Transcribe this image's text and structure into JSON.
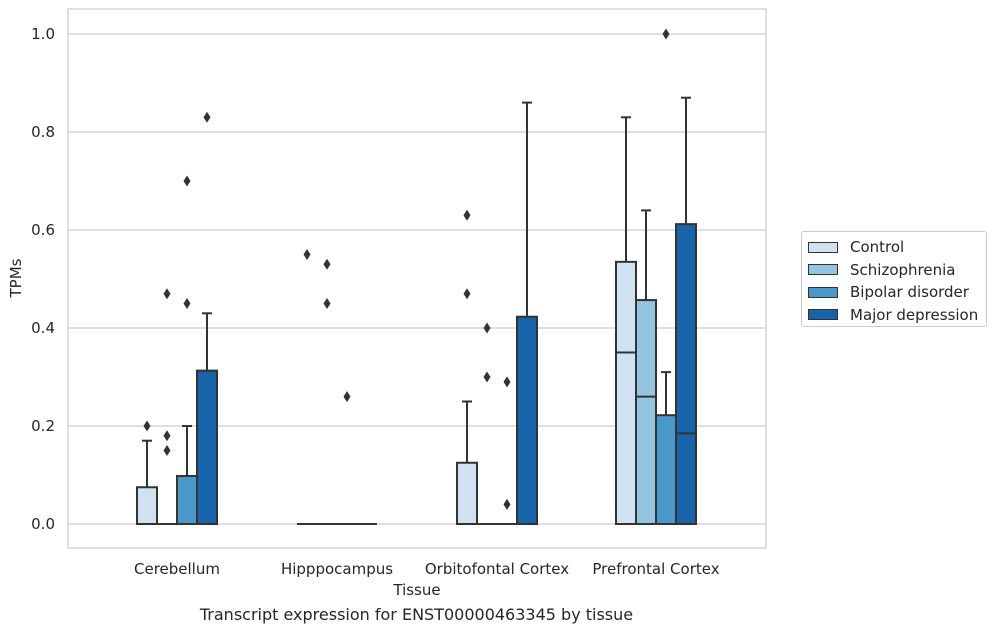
{
  "chart_data": {
    "type": "box",
    "title": "",
    "xlabel": "Tissue",
    "ylabel": "TPMs",
    "ylim": [
      -0.05,
      1.05
    ],
    "yticks": [
      "0.0",
      "0.2",
      "0.4",
      "0.6",
      "0.8",
      "1.0"
    ],
    "categories": [
      "Cerebellum",
      "Hipppocampus",
      "Orbitofontal Cortex",
      "Prefrontal Cortex"
    ],
    "grid": "horizontal",
    "legend_position": "right",
    "series": [
      {
        "name": "Control",
        "color": "#d0e1f2",
        "boxes": [
          {
            "q1": 0.0,
            "median": 0.0,
            "q3": 0.075,
            "whisker_low": 0.0,
            "whisker_high": 0.17,
            "outliers": [
              0.2
            ]
          },
          {
            "q1": 0.0,
            "median": 0.0,
            "q3": 0.0,
            "whisker_low": 0.0,
            "whisker_high": 0.0,
            "outliers": [
              0.55
            ]
          },
          {
            "q1": 0.0,
            "median": 0.0,
            "q3": 0.125,
            "whisker_low": 0.0,
            "whisker_high": 0.25,
            "outliers": [
              0.47,
              0.63
            ]
          },
          {
            "q1": 0.0,
            "median": 0.35,
            "q3": 0.535,
            "whisker_low": 0.0,
            "whisker_high": 0.83,
            "outliers": []
          }
        ]
      },
      {
        "name": "Schizophrenia",
        "color": "#94c4df",
        "boxes": [
          {
            "q1": 0.0,
            "median": 0.0,
            "q3": 0.0,
            "whisker_low": 0.0,
            "whisker_high": 0.0,
            "outliers": [
              0.15,
              0.18,
              0.47
            ]
          },
          {
            "q1": 0.0,
            "median": 0.0,
            "q3": 0.0,
            "whisker_low": 0.0,
            "whisker_high": 0.0,
            "outliers": [
              0.45,
              0.53
            ]
          },
          {
            "q1": 0.0,
            "median": 0.0,
            "q3": 0.0,
            "whisker_low": 0.0,
            "whisker_high": 0.0,
            "outliers": [
              0.3,
              0.4
            ]
          },
          {
            "q1": 0.0,
            "median": 0.26,
            "q3": 0.457,
            "whisker_low": 0.0,
            "whisker_high": 0.64,
            "outliers": []
          }
        ]
      },
      {
        "name": "Bipolar disorder",
        "color": "#4a98c9",
        "boxes": [
          {
            "q1": 0.0,
            "median": 0.0,
            "q3": 0.098,
            "whisker_low": 0.0,
            "whisker_high": 0.2,
            "outliers": [
              0.45,
              0.7
            ]
          },
          {
            "q1": 0.0,
            "median": 0.0,
            "q3": 0.0,
            "whisker_low": 0.0,
            "whisker_high": 0.0,
            "outliers": [
              0.26
            ]
          },
          {
            "q1": 0.0,
            "median": 0.0,
            "q3": 0.0,
            "whisker_low": 0.0,
            "whisker_high": 0.0,
            "outliers": [
              0.04,
              0.29
            ]
          },
          {
            "q1": 0.0,
            "median": 0.0,
            "q3": 0.222,
            "whisker_low": 0.0,
            "whisker_high": 0.31,
            "outliers": [
              1.0
            ]
          }
        ]
      },
      {
        "name": "Major depression",
        "color": "#1764ab",
        "boxes": [
          {
            "q1": 0.0,
            "median": 0.0,
            "q3": 0.313,
            "whisker_low": 0.0,
            "whisker_high": 0.43,
            "outliers": [
              0.83
            ]
          },
          {
            "q1": 0.0,
            "median": 0.0,
            "q3": 0.0,
            "whisker_low": 0.0,
            "whisker_high": 0.0,
            "outliers": []
          },
          {
            "q1": 0.0,
            "median": 0.0,
            "q3": 0.423,
            "whisker_low": 0.0,
            "whisker_high": 0.86,
            "outliers": []
          },
          {
            "q1": 0.0,
            "median": 0.185,
            "q3": 0.612,
            "whisker_low": 0.0,
            "whisker_high": 0.87,
            "outliers": []
          }
        ]
      }
    ]
  },
  "caption": "Transcript expression for ENST00000463345 by tissue"
}
